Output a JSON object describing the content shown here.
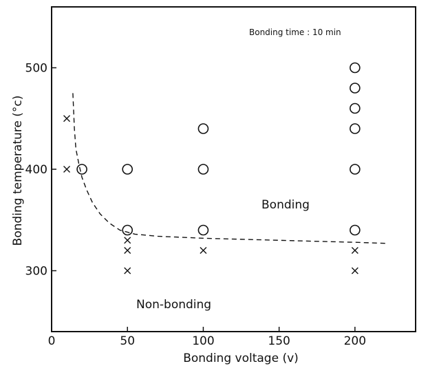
{
  "chart_data": {
    "type": "scatter",
    "title": "",
    "xlabel": "Bonding voltage (v)",
    "ylabel": "Bonding temperature (°c)",
    "xlim": [
      0,
      240
    ],
    "ylim": [
      240,
      560
    ],
    "x_ticks": [
      0,
      50,
      100,
      150,
      200
    ],
    "y_ticks": [
      300,
      400,
      500
    ],
    "grid": false,
    "legend": "none",
    "annotations": {
      "time_note": "Bonding time : 10 min",
      "bonding_region": "Bonding",
      "nonbonding_region": "Non-bonding"
    },
    "series": [
      {
        "marker": "circle",
        "points": [
          [
            20,
            400
          ],
          [
            50,
            400
          ],
          [
            50,
            340
          ],
          [
            100,
            440
          ],
          [
            100,
            400
          ],
          [
            100,
            340
          ],
          [
            200,
            500
          ],
          [
            200,
            480
          ],
          [
            200,
            460
          ],
          [
            200,
            440
          ],
          [
            200,
            400
          ],
          [
            200,
            340
          ]
        ]
      },
      {
        "marker": "cross",
        "points": [
          [
            10,
            450
          ],
          [
            10,
            400
          ],
          [
            50,
            330
          ],
          [
            50,
            320
          ],
          [
            50,
            300
          ],
          [
            100,
            320
          ],
          [
            200,
            320
          ],
          [
            200,
            300
          ]
        ]
      }
    ],
    "boundary_curve": [
      [
        14,
        475
      ],
      [
        15,
        440
      ],
      [
        16,
        420
      ],
      [
        18,
        405
      ],
      [
        20,
        392
      ],
      [
        23,
        380
      ],
      [
        27,
        367
      ],
      [
        32,
        356
      ],
      [
        38,
        347
      ],
      [
        45,
        340
      ],
      [
        55,
        336
      ],
      [
        70,
        334
      ],
      [
        100,
        332
      ],
      [
        150,
        330
      ],
      [
        200,
        328
      ],
      [
        220,
        327
      ]
    ]
  }
}
